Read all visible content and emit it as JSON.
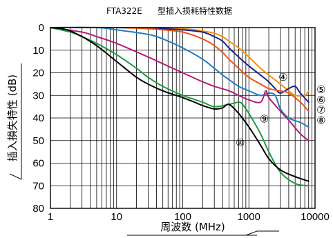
{
  "chart_data": {
    "type": "line",
    "title": "FTA322E",
    "subtitle": "型插入损耗特性数据",
    "xlabel": "周波数 (MHz)",
    "ylabel": "插入損失特性 (dB)",
    "x_scale": "log",
    "xlim": [
      1,
      10000
    ],
    "ylim": [
      0,
      80
    ],
    "y_inverted": true,
    "x_ticks": [
      "1",
      "10",
      "100",
      "1000",
      "10000"
    ],
    "y_ticks": [
      "0",
      "10",
      "20",
      "30",
      "40",
      "50",
      "60",
      "70",
      "80"
    ],
    "grid": true,
    "series": [
      {
        "name": "④",
        "color": "#f39200",
        "x": [
          1,
          10,
          50,
          100,
          150,
          200,
          300,
          400,
          500,
          700,
          1000,
          1500,
          2000,
          3000,
          4000,
          5000,
          7000,
          8000
        ],
        "y": [
          0,
          0,
          0,
          0.5,
          1,
          1.5,
          2.5,
          4,
          6,
          9,
          13,
          18,
          21,
          25,
          28,
          30,
          30,
          28
        ]
      },
      {
        "name": "⑤",
        "color": "#1d2088",
        "x": [
          1,
          10,
          50,
          100,
          200,
          300,
          400,
          500,
          700,
          1000,
          1500,
          2000,
          2500,
          3000,
          4000,
          5000,
          6000,
          8000
        ],
        "y": [
          0,
          0,
          0.5,
          1,
          2,
          4,
          6,
          9,
          13,
          17,
          21,
          24,
          27,
          29,
          27,
          26,
          29,
          33
        ]
      },
      {
        "name": "⑥",
        "color": "#e95513",
        "x": [
          1,
          10,
          30,
          50,
          100,
          200,
          300,
          400,
          500,
          700,
          1000,
          1500,
          2000,
          3000,
          4000,
          6000,
          8000
        ],
        "y": [
          0,
          0,
          0.5,
          1,
          2,
          5,
          8,
          11,
          14,
          18,
          22,
          25,
          27,
          28,
          29,
          33,
          37
        ]
      },
      {
        "name": "⑦",
        "color": "#1d7cc3",
        "x": [
          1,
          5,
          10,
          30,
          50,
          100,
          200,
          300,
          400,
          500,
          700,
          1000,
          1500,
          2000,
          2500,
          3000,
          4000,
          6000,
          8000
        ],
        "y": [
          0,
          0,
          1,
          3,
          5,
          9,
          14,
          18,
          21,
          23,
          26,
          28,
          30,
          29,
          30,
          36,
          40,
          42,
          44
        ]
      },
      {
        "name": "⑨",
        "color": "#b5197c",
        "x": [
          1,
          3,
          5,
          10,
          30,
          50,
          100,
          200,
          300,
          500,
          700,
          1000,
          1500,
          1800,
          2000,
          3000,
          4000,
          6000,
          8000
        ],
        "y": [
          0,
          2,
          4,
          7,
          13,
          16,
          20,
          24,
          26,
          28,
          30,
          32,
          33,
          28,
          31,
          37,
          41,
          47,
          50
        ]
      },
      {
        "name": "⑧",
        "color": "#1a9a3c",
        "x": [
          1,
          2,
          3,
          5,
          10,
          20,
          30,
          50,
          100,
          200,
          300,
          500,
          700,
          800,
          1000,
          1500,
          2000,
          3000,
          5000,
          8000
        ],
        "y": [
          0,
          2,
          4,
          7,
          12,
          18,
          22,
          26,
          30,
          33,
          35,
          34,
          33,
          34,
          38,
          47,
          55,
          64,
          69,
          70
        ]
      },
      {
        "name": "⑩",
        "color": "#000000",
        "x": [
          1,
          1.5,
          2,
          3,
          5,
          10,
          20,
          30,
          50,
          100,
          150,
          200,
          300,
          400,
          500,
          700,
          1000,
          1500,
          2000,
          3000,
          5000,
          8000
        ],
        "y": [
          0,
          0.5,
          1.5,
          4,
          8,
          15,
          22,
          25,
          28,
          31,
          33,
          34.5,
          36,
          35.5,
          34,
          38,
          44,
          52,
          58,
          63,
          66,
          68
        ]
      }
    ],
    "labels": [
      {
        "text": "④",
        "x": 2800,
        "y": 22
      },
      {
        "text": "⑤",
        "x": 10500,
        "y": 27.5
      },
      {
        "text": "⑥",
        "x": 10500,
        "y": 32
      },
      {
        "text": "⑦",
        "x": 10500,
        "y": 36.5
      },
      {
        "text": "⑧",
        "x": 10500,
        "y": 41
      },
      {
        "text": "⑨",
        "x": 1450,
        "y": 40.5
      },
      {
        "text": "⑩",
        "x": 630,
        "y": 51
      }
    ]
  }
}
